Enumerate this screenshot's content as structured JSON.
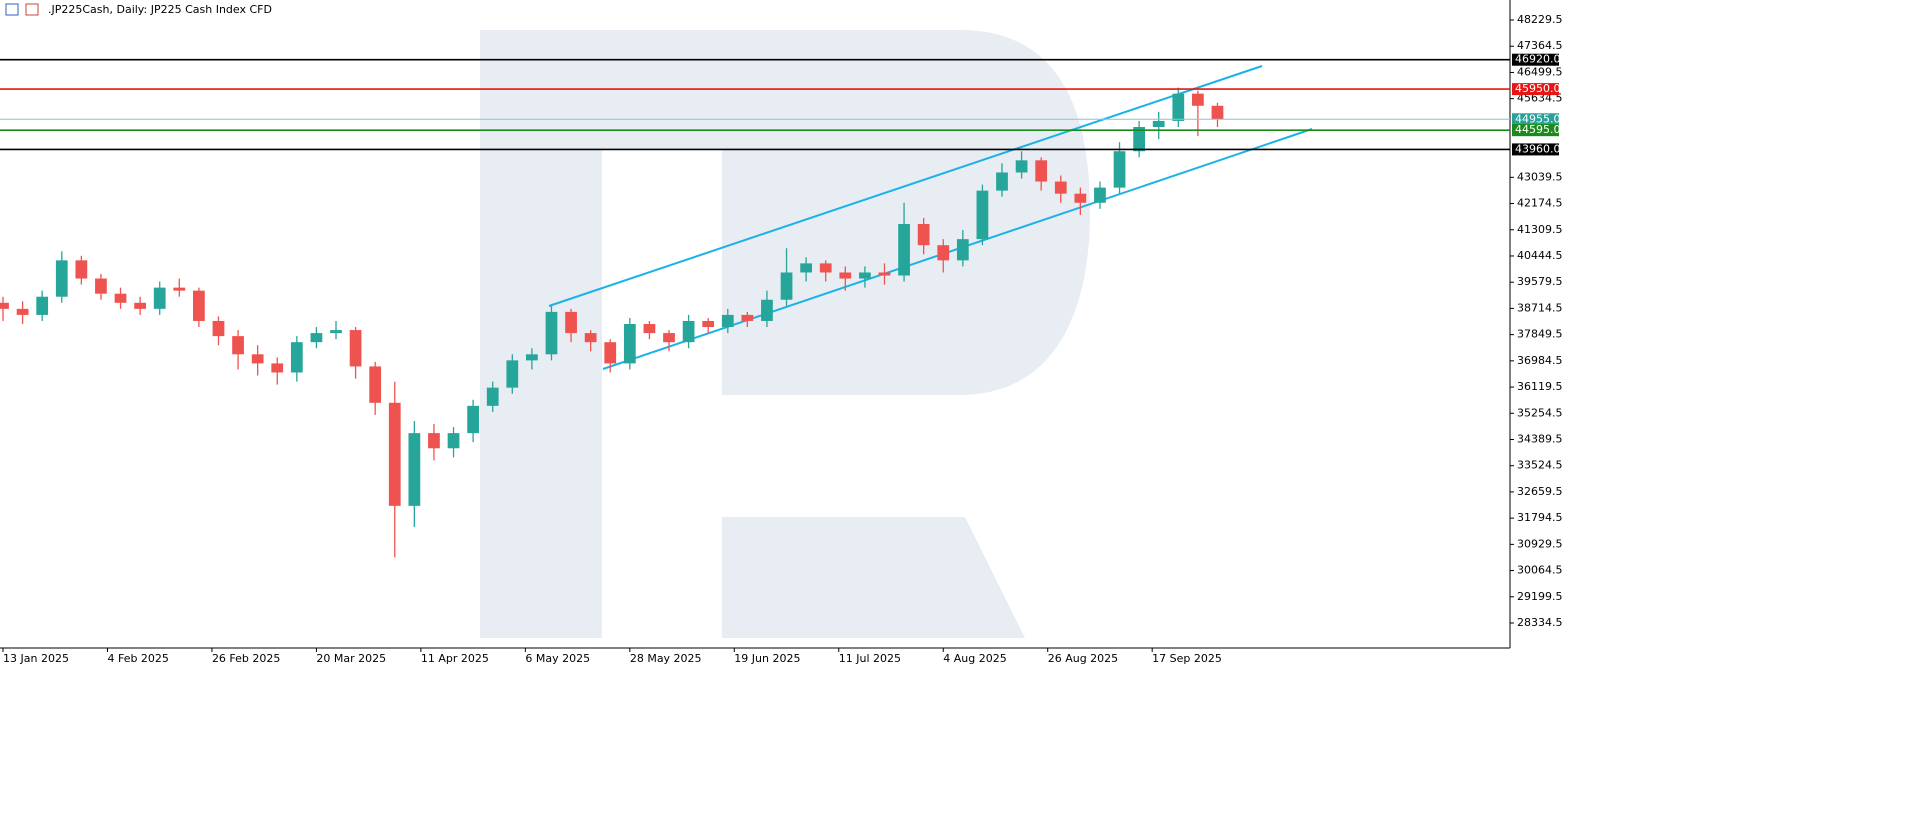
{
  "chart_data": {
    "type": "candlestick",
    "title": ".JP225Cash, Daily:  JP225 Cash Index CFD",
    "x": [
      0,
      3,
      6,
      9,
      12,
      15,
      18,
      21,
      24,
      27,
      30,
      33,
      36,
      39,
      42,
      45,
      48,
      51,
      54,
      57,
      60,
      63,
      66,
      69,
      72,
      75,
      78,
      81,
      84,
      87,
      90,
      93,
      96,
      99,
      102,
      105,
      108,
      111,
      114,
      117,
      120,
      123,
      126,
      129,
      132,
      135,
      138,
      141,
      144,
      147,
      150,
      153,
      156,
      159,
      162,
      165,
      168,
      171,
      174,
      177,
      180,
      183,
      186
    ],
    "open": [
      38900,
      38700,
      38500,
      39100,
      40300,
      39700,
      39200,
      38900,
      38700,
      39400,
      39300,
      38300,
      37800,
      37200,
      36900,
      36600,
      37600,
      37900,
      38000,
      36800,
      35600,
      32200,
      34600,
      34100,
      34600,
      35500,
      36100,
      37000,
      37200,
      38600,
      37900,
      37600,
      36900,
      38200,
      37900,
      37600,
      38300,
      38100,
      38500,
      38300,
      39000,
      39900,
      40200,
      39900,
      39700,
      39900,
      39800,
      41500,
      40800,
      40300,
      41000,
      42600,
      43200,
      43600,
      42900,
      42500,
      42200,
      42700,
      43900,
      44700,
      44900,
      45800,
      45400
    ],
    "high": [
      39100,
      38950,
      39300,
      40600,
      40450,
      39850,
      39400,
      39100,
      39600,
      39700,
      39400,
      38450,
      38000,
      37500,
      37100,
      37800,
      38100,
      38300,
      38100,
      36950,
      36300,
      35000,
      34900,
      34800,
      35700,
      36300,
      37200,
      37400,
      38800,
      38700,
      38000,
      37700,
      38400,
      38300,
      38000,
      38500,
      38400,
      38700,
      38600,
      39300,
      40700,
      40400,
      40300,
      40100,
      40100,
      40200,
      42200,
      41700,
      41000,
      41300,
      42800,
      43500,
      43900,
      43700,
      43100,
      42700,
      42900,
      44200,
      44900,
      45200,
      46000,
      45900,
      45500
    ],
    "low": [
      38300,
      38200,
      38300,
      38900,
      39500,
      39000,
      38700,
      38500,
      38500,
      39100,
      38100,
      37500,
      36700,
      36500,
      36200,
      36300,
      37400,
      37700,
      36400,
      35200,
      30500,
      31500,
      33700,
      33800,
      34300,
      35300,
      35900,
      36700,
      37000,
      37600,
      37300,
      36600,
      36700,
      37700,
      37300,
      37400,
      37900,
      37900,
      38100,
      38100,
      38800,
      39600,
      39600,
      39300,
      39400,
      39500,
      39600,
      40500,
      39900,
      40100,
      40800,
      42400,
      43000,
      42600,
      42200,
      41800,
      42000,
      42500,
      43700,
      44300,
      44700,
      44400,
      44700
    ],
    "close": [
      38700,
      38500,
      39100,
      40300,
      39700,
      39200,
      38900,
      38700,
      39400,
      39300,
      38300,
      37800,
      37200,
      36900,
      36600,
      37600,
      37900,
      38000,
      36800,
      35600,
      32200,
      34600,
      34100,
      34600,
      35500,
      36100,
      37000,
      37200,
      38600,
      37900,
      37600,
      36900,
      38200,
      37900,
      37600,
      38300,
      38100,
      38500,
      38300,
      39000,
      39900,
      40200,
      39900,
      39700,
      39900,
      39800,
      41500,
      40800,
      40300,
      41000,
      42600,
      43200,
      43600,
      42900,
      42500,
      42200,
      42700,
      43900,
      44700,
      44900,
      45800,
      45400,
      44960
    ],
    "up_color": "#26a69a",
    "down_color": "#ef5350",
    "xlim": [
      -0.46,
      230.8
    ],
    "xticks": [
      {
        "value": 0,
        "label": "13 Jan 2025"
      },
      {
        "value": 16,
        "label": "4 Feb 2025"
      },
      {
        "value": 32,
        "label": "26 Feb 2025"
      },
      {
        "value": 48,
        "label": "20 Mar 2025"
      },
      {
        "value": 64,
        "label": "11 Apr 2025"
      },
      {
        "value": 80,
        "label": "6 May 2025"
      },
      {
        "value": 96,
        "label": "28 May 2025"
      },
      {
        "value": 112,
        "label": "19 Jun 2025"
      },
      {
        "value": 128,
        "label": "11 Jul 2025"
      },
      {
        "value": 144,
        "label": "4 Aug 2025"
      },
      {
        "value": 160,
        "label": "26 Aug 2025"
      },
      {
        "value": 176,
        "label": "17 Sep 2025"
      }
    ],
    "ylim": [
      27510,
      48890
    ],
    "yticks": [
      48229.5,
      47364.5,
      46499.5,
      45634.5,
      43039.5,
      42174.5,
      41309.5,
      40444.5,
      39579.5,
      38714.5,
      37849.5,
      36984.5,
      36119.5,
      35254.5,
      34389.5,
      33524.5,
      32659.5,
      31794.5,
      30929.5,
      30064.5,
      29199.5,
      28334.5
    ],
    "levels": [
      {
        "value": {
          "value": 46920,
          "label": "46920.0"
        },
        "color": "#000000"
      },
      {
        "value": {
          "value": 45950,
          "label": "45950.0"
        },
        "color": "#e81515"
      },
      {
        "value": {
          "value": 44955,
          "label": "44955.0"
        },
        "color": "#2aa198"
      },
      {
        "value": {
          "value": 44595,
          "label": "44595.0"
        },
        "color": "#1a8a1a"
      },
      {
        "value": {
          "value": 43960,
          "label": "43960.0"
        },
        "color": "#000000"
      }
    ]
  }
}
